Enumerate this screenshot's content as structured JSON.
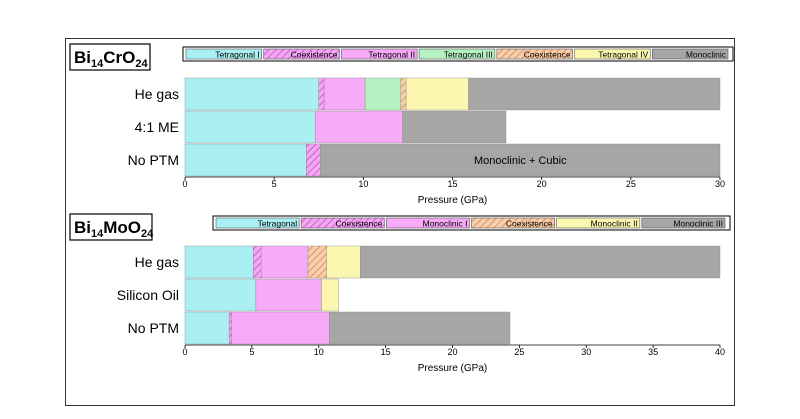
{
  "chart_data": [
    {
      "type": "bar",
      "orientation": "horizontal-stacked",
      "title_html": {
        "base": "Bi",
        "sub1": "14",
        "mid": "CrO",
        "sub2": "24"
      },
      "xlabel": "Pressure (GPa)",
      "xlim": [
        0,
        30
      ],
      "xticks": [
        0,
        5,
        10,
        15,
        20,
        25,
        30
      ],
      "legend_placement": "top",
      "legend": [
        {
          "key": "tet1",
          "label": "Tetragonal I",
          "color": "#aaf0f2"
        },
        {
          "key": "coex_m",
          "label": "Coexistence",
          "color": "#ee99ee",
          "hatch": true
        },
        {
          "key": "tet2",
          "label": "Tetragonal II",
          "color": "#f7aaf7"
        },
        {
          "key": "tet3",
          "label": "Tetragonal III",
          "color": "#b8f2c2"
        },
        {
          "key": "coex_o",
          "label": "Coexistence",
          "color": "#f7c8a4",
          "hatch": true
        },
        {
          "key": "tet4",
          "label": "Tetragonal IV",
          "color": "#fbf7b0"
        },
        {
          "key": "mono",
          "label": "Monoclinic",
          "color": "#a6a6a6"
        }
      ],
      "rows": [
        {
          "label": "He gas",
          "segments": [
            {
              "key": "tet1",
              "start": 0,
              "end": 7.5
            },
            {
              "key": "coex_m",
              "start": 7.5,
              "end": 7.8
            },
            {
              "key": "tet2",
              "start": 7.8,
              "end": 10.1
            },
            {
              "key": "tet3",
              "start": 10.1,
              "end": 12.1
            },
            {
              "key": "coex_o",
              "start": 12.1,
              "end": 12.4
            },
            {
              "key": "tet4",
              "start": 12.4,
              "end": 15.9
            },
            {
              "key": "mono",
              "start": 15.9,
              "end": 30
            }
          ]
        },
        {
          "label": "4:1 ME",
          "segments": [
            {
              "key": "tet1",
              "start": 0,
              "end": 7.3
            },
            {
              "key": "tet2",
              "start": 7.3,
              "end": 12.2
            },
            {
              "key": "mono",
              "start": 12.2,
              "end": 18.0
            }
          ]
        },
        {
          "label": "No PTM",
          "segments": [
            {
              "key": "tet1",
              "start": 0,
              "end": 6.8
            },
            {
              "key": "coex_m",
              "start": 6.8,
              "end": 7.6
            },
            {
              "key": "mono",
              "start": 7.6,
              "end": 30,
              "text": "Monoclinic + Cubic"
            }
          ]
        }
      ]
    },
    {
      "type": "bar",
      "orientation": "horizontal-stacked",
      "title_html": {
        "base": "Bi",
        "sub1": "14",
        "mid": "MoO",
        "sub2": "24"
      },
      "xlabel": "Pressure (GPa)",
      "xlim": [
        0,
        40
      ],
      "xticks": [
        0,
        5,
        10,
        15,
        20,
        25,
        30,
        35,
        40
      ],
      "legend_placement": "top",
      "legend": [
        {
          "key": "tet",
          "label": "Tetragonal",
          "color": "#aaf0f2"
        },
        {
          "key": "coex_m",
          "label": "Coexistence",
          "color": "#ee99ee",
          "hatch": true
        },
        {
          "key": "mono1",
          "label": "Monoclinic I",
          "color": "#f7aaf7"
        },
        {
          "key": "coex_o",
          "label": "Coexistence",
          "color": "#f7c8a4",
          "hatch": true
        },
        {
          "key": "mono2",
          "label": "Monoclinic II",
          "color": "#fbf7b0"
        },
        {
          "key": "mono3",
          "label": "Monoclinic III",
          "color": "#a6a6a6"
        }
      ],
      "rows": [
        {
          "label": "He gas",
          "segments": [
            {
              "key": "tet",
              "start": 0,
              "end": 5.1
            },
            {
              "key": "coex_m",
              "start": 5.1,
              "end": 5.7
            },
            {
              "key": "mono1",
              "start": 5.7,
              "end": 9.2
            },
            {
              "key": "coex_o",
              "start": 9.2,
              "end": 10.6
            },
            {
              "key": "mono2",
              "start": 10.6,
              "end": 13.1
            },
            {
              "key": "mono3",
              "start": 13.1,
              "end": 40
            }
          ]
        },
        {
          "label": "Silicon Oil",
          "segments": [
            {
              "key": "tet",
              "start": 0,
              "end": 5.3
            },
            {
              "key": "mono1",
              "start": 5.3,
              "end": 10.2
            },
            {
              "key": "mono2",
              "start": 10.2,
              "end": 11.5
            }
          ]
        },
        {
          "label": "No PTM",
          "segments": [
            {
              "key": "tet",
              "start": 0,
              "end": 3.3
            },
            {
              "key": "coex_m",
              "start": 3.3,
              "end": 3.5
            },
            {
              "key": "mono1",
              "start": 3.5,
              "end": 10.8
            },
            {
              "key": "mono3",
              "start": 10.8,
              "end": 24.3
            }
          ]
        }
      ]
    }
  ]
}
